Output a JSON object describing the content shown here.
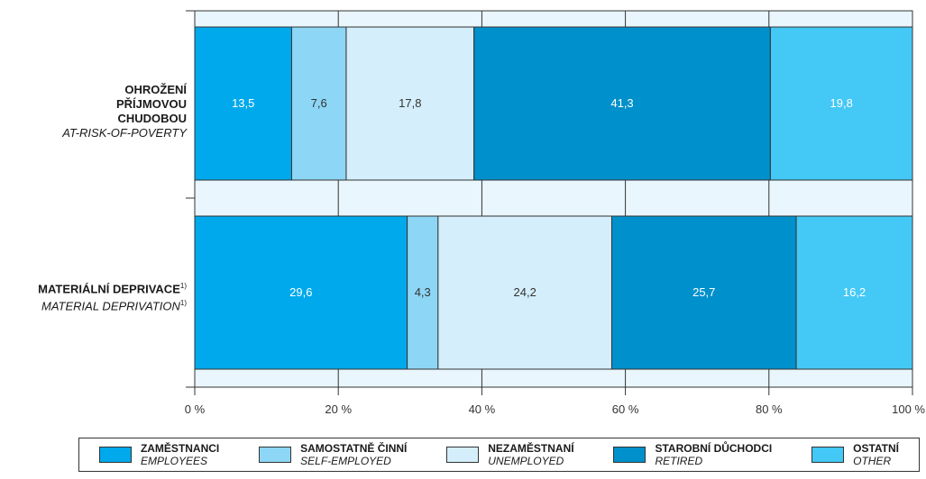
{
  "chart_data": {
    "type": "bar",
    "orientation": "horizontal",
    "stacked": true,
    "categories": [
      {
        "name": "OHROŽENÍ PŘÍJMOVOU CHUDOBOU",
        "name_en": "AT-RISK-OF-POVERTY",
        "footnote": ""
      },
      {
        "name": "MATERIÁLNÍ DEPRIVACE",
        "name_en": "MATERIAL DEPRIVATION",
        "footnote": "1)"
      }
    ],
    "series": [
      {
        "name": "ZAMĚSTNANCI",
        "name_en": "EMPLOYEES",
        "color": "#00a9ec",
        "values": [
          13.5,
          29.6
        ],
        "labels": [
          "13,5",
          "29,6"
        ]
      },
      {
        "name": "SAMOSTATNĚ ČINNÍ",
        "name_en": "SELF-EMPLOYED",
        "color": "#8dd6f5",
        "values": [
          7.6,
          4.3
        ],
        "labels": [
          "7,6",
          "4,3"
        ]
      },
      {
        "name": "NEZAMĚSTNANÍ",
        "name_en": "UNEMPLOYED",
        "color": "#d4eefb",
        "values": [
          17.8,
          24.2
        ],
        "labels": [
          "17,8",
          "24,2"
        ]
      },
      {
        "name": "STAROBNÍ DŮCHODCI",
        "name_en": "RETIRED",
        "color": "#0090cb",
        "values": [
          41.3,
          25.7
        ],
        "labels": [
          "41,3",
          "25,7"
        ]
      },
      {
        "name": "OSTATNÍ",
        "name_en": "OTHER",
        "color": "#44c8f5",
        "values": [
          19.8,
          16.2
        ],
        "labels": [
          "19,8",
          "16,2"
        ]
      }
    ],
    "xlim": [
      0,
      100
    ],
    "xticks": [
      0,
      20,
      40,
      60,
      80,
      100
    ],
    "xtick_labels": [
      "0 %",
      "20 %",
      "40 %",
      "60 %",
      "80 %",
      "100 %"
    ],
    "grid": true,
    "grid_color": "#e9f6fd",
    "label_colors": {
      "light": "#ffffff",
      "dark": "#333333"
    },
    "legend_position": "bottom"
  }
}
